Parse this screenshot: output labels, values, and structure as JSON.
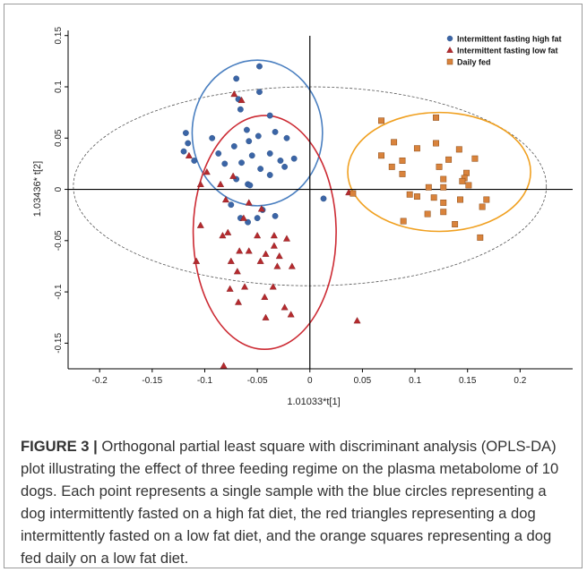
{
  "chart_data": {
    "type": "scatter",
    "xlabel": "1.01033*t[1]",
    "ylabel": "1.03436* t[2]",
    "xlim": [
      -0.23,
      0.25
    ],
    "ylim": [
      -0.175,
      0.155
    ],
    "x_ticks": [
      -0.2,
      -0.15,
      -0.1,
      -0.05,
      0,
      0.05,
      0.1,
      0.15,
      0.2
    ],
    "x_tick_labels": [
      "-0.2",
      "-0.15",
      "-0.1",
      "-0.05",
      "0",
      "0.05",
      "0.1",
      "0.15",
      "0.2"
    ],
    "y_ticks": [
      0.15,
      0.1,
      0.05,
      0,
      -0.05,
      -0.1,
      -0.15
    ],
    "y_tick_labels": [
      "0.15",
      "0.1",
      "0.05",
      "0",
      "-0.05",
      "-0.1",
      "-0.15"
    ],
    "legend_position": "top-right",
    "grid": false,
    "reference_ellipse": {
      "cx": 0,
      "cy": 0.003,
      "rx": 0.225,
      "ry": 0.097
    },
    "series": [
      {
        "name": "Intermittent fasting high fat",
        "marker": "circle",
        "color": "#3b65a6",
        "ellipse": {
          "cx": -0.05,
          "cy": 0.055,
          "rx": 0.062,
          "ry": 0.071,
          "color": "#4a7fc0"
        },
        "points": [
          [
            -0.048,
            0.12
          ],
          [
            -0.07,
            0.108
          ],
          [
            -0.048,
            0.095
          ],
          [
            -0.068,
            0.088
          ],
          [
            -0.038,
            0.072
          ],
          [
            -0.066,
            0.078
          ],
          [
            -0.118,
            0.055
          ],
          [
            -0.06,
            0.058
          ],
          [
            -0.033,
            0.056
          ],
          [
            -0.022,
            0.05
          ],
          [
            -0.093,
            0.05
          ],
          [
            -0.049,
            0.052
          ],
          [
            -0.058,
            0.047
          ],
          [
            -0.116,
            0.045
          ],
          [
            -0.072,
            0.042
          ],
          [
            -0.087,
            0.035
          ],
          [
            -0.038,
            0.035
          ],
          [
            -0.12,
            0.037
          ],
          [
            -0.055,
            0.033
          ],
          [
            -0.015,
            0.03
          ],
          [
            -0.028,
            0.028
          ],
          [
            -0.024,
            0.022
          ],
          [
            -0.081,
            0.025
          ],
          [
            -0.11,
            0.028
          ],
          [
            -0.065,
            0.026
          ],
          [
            -0.047,
            0.02
          ],
          [
            -0.038,
            0.014
          ],
          [
            -0.07,
            0.01
          ],
          [
            -0.059,
            0.005
          ],
          [
            -0.057,
            0.004
          ],
          [
            -0.075,
            -0.015
          ],
          [
            -0.045,
            -0.02
          ],
          [
            -0.066,
            -0.028
          ],
          [
            -0.05,
            -0.028
          ],
          [
            -0.033,
            -0.026
          ],
          [
            -0.059,
            -0.032
          ],
          [
            0.013,
            -0.009
          ]
        ]
      },
      {
        "name": "Intermittent fasting low fat",
        "marker": "triangle",
        "color": "#b52a2e",
        "ellipse": {
          "cx": -0.043,
          "cy": -0.042,
          "rx": 0.068,
          "ry": 0.114,
          "color": "#cc2a33"
        },
        "points": [
          [
            -0.072,
            0.093
          ],
          [
            -0.065,
            0.087
          ],
          [
            -0.115,
            0.033
          ],
          [
            -0.098,
            0.017
          ],
          [
            -0.073,
            0.013
          ],
          [
            -0.085,
            0.005
          ],
          [
            -0.104,
            0.005
          ],
          [
            -0.08,
            -0.01
          ],
          [
            -0.058,
            -0.013
          ],
          [
            -0.046,
            -0.019
          ],
          [
            -0.063,
            -0.028
          ],
          [
            -0.083,
            -0.045
          ],
          [
            -0.104,
            -0.035
          ],
          [
            -0.078,
            -0.042
          ],
          [
            -0.05,
            -0.045
          ],
          [
            -0.034,
            -0.045
          ],
          [
            -0.022,
            -0.048
          ],
          [
            -0.034,
            -0.055
          ],
          [
            -0.067,
            -0.06
          ],
          [
            -0.058,
            -0.06
          ],
          [
            -0.042,
            -0.063
          ],
          [
            -0.029,
            -0.065
          ],
          [
            -0.075,
            -0.07
          ],
          [
            -0.047,
            -0.07
          ],
          [
            -0.031,
            -0.075
          ],
          [
            -0.017,
            -0.075
          ],
          [
            -0.108,
            -0.07
          ],
          [
            -0.069,
            -0.08
          ],
          [
            -0.035,
            -0.095
          ],
          [
            -0.062,
            -0.095
          ],
          [
            -0.076,
            -0.097
          ],
          [
            -0.043,
            -0.105
          ],
          [
            -0.068,
            -0.11
          ],
          [
            -0.024,
            -0.115
          ],
          [
            -0.018,
            -0.122
          ],
          [
            -0.042,
            -0.125
          ],
          [
            -0.082,
            -0.172
          ],
          [
            0.045,
            -0.128
          ],
          [
            0.037,
            -0.003
          ]
        ]
      },
      {
        "name": "Daily fed",
        "marker": "square",
        "color": "#d9833c",
        "ellipse": {
          "cx": 0.123,
          "cy": 0.017,
          "rx": 0.087,
          "ry": 0.058,
          "color": "#f0a020"
        },
        "points": [
          [
            0.12,
            0.07
          ],
          [
            0.068,
            0.067
          ],
          [
            0.12,
            0.045
          ],
          [
            0.08,
            0.046
          ],
          [
            0.102,
            0.04
          ],
          [
            0.142,
            0.039
          ],
          [
            0.068,
            0.033
          ],
          [
            0.157,
            0.03
          ],
          [
            0.088,
            0.028
          ],
          [
            0.132,
            0.029
          ],
          [
            0.078,
            0.022
          ],
          [
            0.123,
            0.022
          ],
          [
            0.149,
            0.016
          ],
          [
            0.088,
            0.015
          ],
          [
            0.147,
            0.011
          ],
          [
            0.127,
            0.01
          ],
          [
            0.145,
            0.008
          ],
          [
            0.113,
            0.002
          ],
          [
            0.127,
            0.002
          ],
          [
            0.151,
            0.004
          ],
          [
            0.118,
            -0.008
          ],
          [
            0.095,
            -0.005
          ],
          [
            0.102,
            -0.007
          ],
          [
            0.143,
            -0.01
          ],
          [
            0.168,
            -0.01
          ],
          [
            0.127,
            -0.013
          ],
          [
            0.164,
            -0.017
          ],
          [
            0.127,
            -0.022
          ],
          [
            0.112,
            -0.024
          ],
          [
            0.089,
            -0.031
          ],
          [
            0.041,
            -0.004
          ],
          [
            0.162,
            -0.047
          ],
          [
            0.138,
            -0.034
          ]
        ]
      }
    ]
  },
  "caption": {
    "label": "FIGURE 3 |",
    "text": "Orthogonal partial least square with discriminant analysis (OPLS-DA) plot illustrating the effect of three feeding regime on the plasma metabolome of 10 dogs. Each point represents a single sample with the blue circles representing a dog intermittently fasted on a high fat diet, the red triangles representing a dog intermittently fasted on a low fat diet, and the orange squares representing a dog fed daily on a low fat diet."
  }
}
